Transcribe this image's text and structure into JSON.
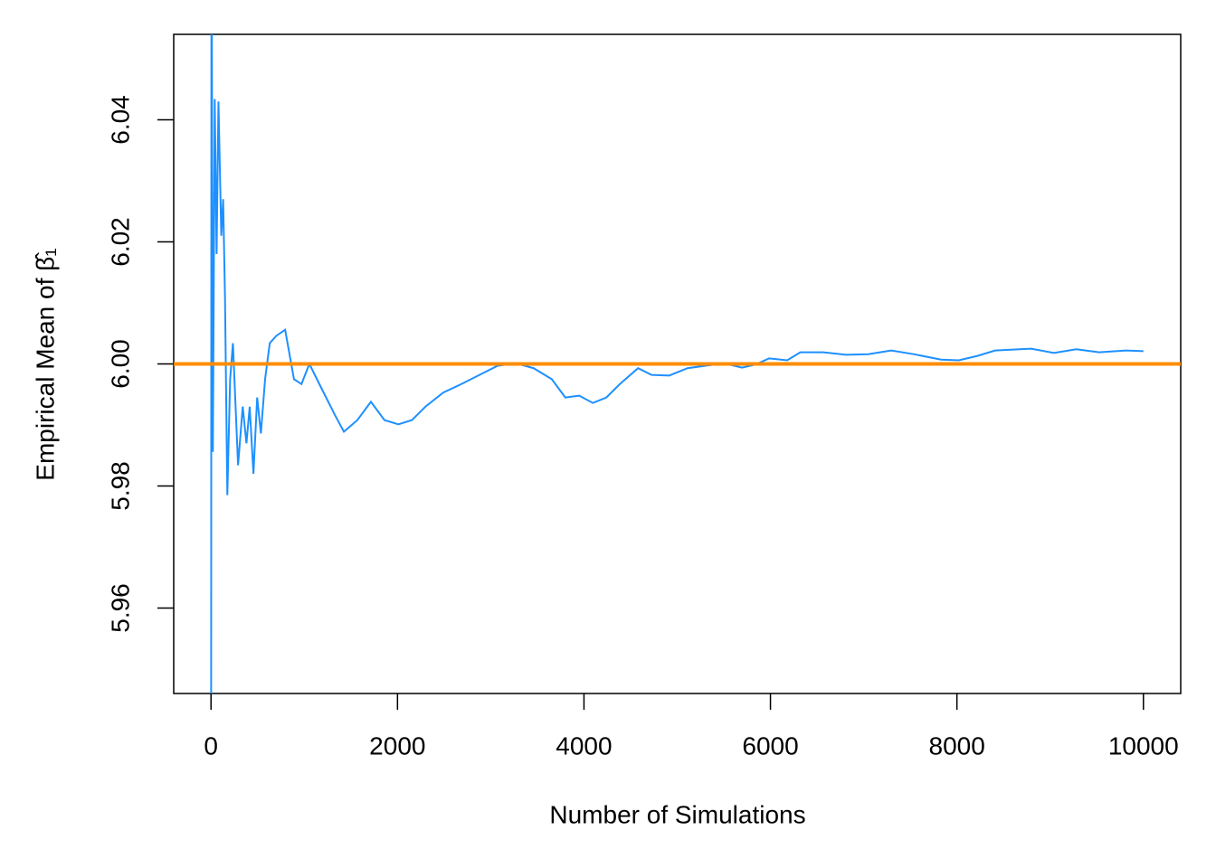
{
  "chart_data": {
    "type": "line",
    "xlabel": "Number of Simulations",
    "ylabel": "Empirical Mean of  β̂₁",
    "x": [
      1,
      5,
      20,
      40,
      60,
      80,
      110,
      130,
      150,
      175,
      205,
      235,
      290,
      340,
      380,
      415,
      455,
      495,
      535,
      580,
      630,
      700,
      795,
      890,
      970,
      1055,
      1185,
      1330,
      1425,
      1570,
      1715,
      1860,
      2010,
      2155,
      2300,
      2490,
      2685,
      2880,
      3075,
      3270,
      3460,
      3655,
      3800,
      3950,
      4095,
      4240,
      4385,
      4580,
      4725,
      4915,
      5110,
      5305,
      5500,
      5695,
      5840,
      5985,
      6180,
      6320,
      6565,
      6810,
      7050,
      7295,
      7535,
      7830,
      8020,
      8215,
      8410,
      8795,
      9040,
      9280,
      9525,
      9815,
      10000
    ],
    "series": [
      {
        "color": "#1e90ff",
        "values": [
          5.93,
          6.08,
          5.9856,
          6.0434,
          6.018,
          6.043,
          6.021,
          6.027,
          6.011,
          5.9785,
          5.9975,
          6.0034,
          5.9834,
          5.993,
          5.987,
          5.993,
          5.982,
          5.9945,
          5.9886,
          5.9975,
          6.0034,
          6.0046,
          6.0056,
          5.9975,
          5.9967,
          6.0,
          5.996,
          5.9916,
          5.9889,
          5.9908,
          5.9938,
          5.9908,
          5.9901,
          5.9908,
          5.993,
          5.9953,
          5.9967,
          5.9982,
          5.9997,
          6.0001,
          5.9993,
          5.9975,
          5.9945,
          5.9948,
          5.9936,
          5.9945,
          5.9967,
          5.9993,
          5.9982,
          5.9981,
          5.9993,
          5.9997,
          6.0001,
          5.9994,
          5.9999,
          6.0009,
          6.0006,
          6.0019,
          6.0019,
          6.0015,
          6.0016,
          6.0022,
          6.0016,
          6.0007,
          6.0006,
          6.0013,
          6.0022,
          6.0025,
          6.0018,
          6.0024,
          6.0019,
          6.0022,
          6.0021
        ]
      }
    ],
    "reference_line": {
      "value": 6,
      "color": "#ff8c00"
    },
    "xlim": [
      -400,
      10400
    ],
    "xticks": [
      0,
      2000,
      4000,
      6000,
      8000,
      10000
    ],
    "ylim": [
      5.946,
      6.054
    ],
    "yticks": [
      5.96,
      5.98,
      {
        "value": 6,
        "label": "6.00"
      },
      6.02,
      6.04
    ]
  }
}
